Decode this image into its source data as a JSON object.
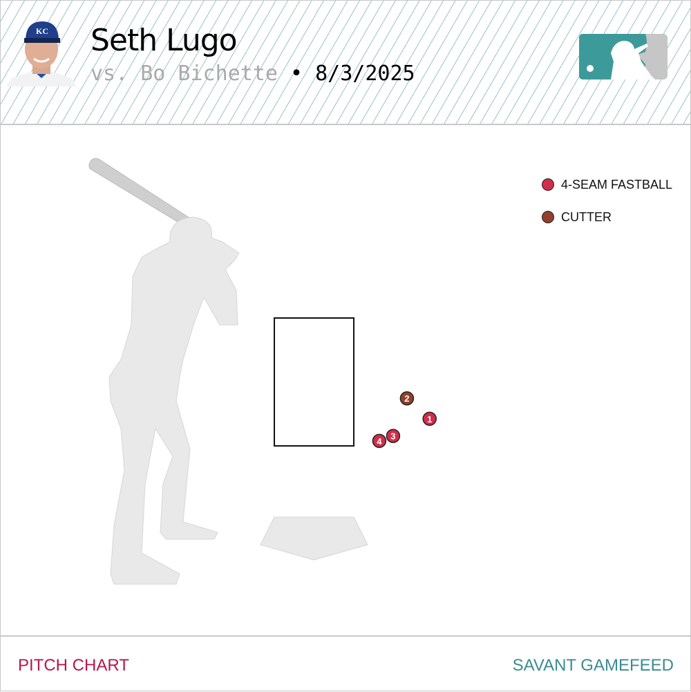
{
  "header": {
    "pitcher": "Seth Lugo",
    "vs_text": "vs. Bo Bichette",
    "separator": "•",
    "date": "8/3/2025",
    "logo": "mlb-logo"
  },
  "colors": {
    "4-SEAM FASTBALL": "#d22d49",
    "CUTTER": "#933f2c",
    "footer_left": "#b5174b",
    "footer_right": "#3b8b91"
  },
  "legend": [
    {
      "label": "4-SEAM FASTBALL",
      "color": "#d22d49"
    },
    {
      "label": "CUTTER",
      "color": "#933f2c"
    }
  ],
  "chart_data": {
    "type": "scatter",
    "strike_zone": {
      "left_ft": -0.71,
      "right_ft": 0.71,
      "bottom_ft": 1.1,
      "top_ft": 3.4
    },
    "pitches": [
      {
        "number": "1",
        "type": "4-SEAM FASTBALL",
        "plate_x": 2.09,
        "plate_z": 1.59
      },
      {
        "number": "2",
        "type": "CUTTER",
        "plate_x": 1.68,
        "plate_z": 1.96
      },
      {
        "number": "3",
        "type": "4-SEAM FASTBALL",
        "plate_x": 1.43,
        "plate_z": 1.28
      },
      {
        "number": "4",
        "type": "4-SEAM FASTBALL",
        "plate_x": 1.18,
        "plate_z": 1.19
      }
    ]
  },
  "footer": {
    "left": "PITCH CHART",
    "right": "SAVANT GAMEFEED"
  }
}
